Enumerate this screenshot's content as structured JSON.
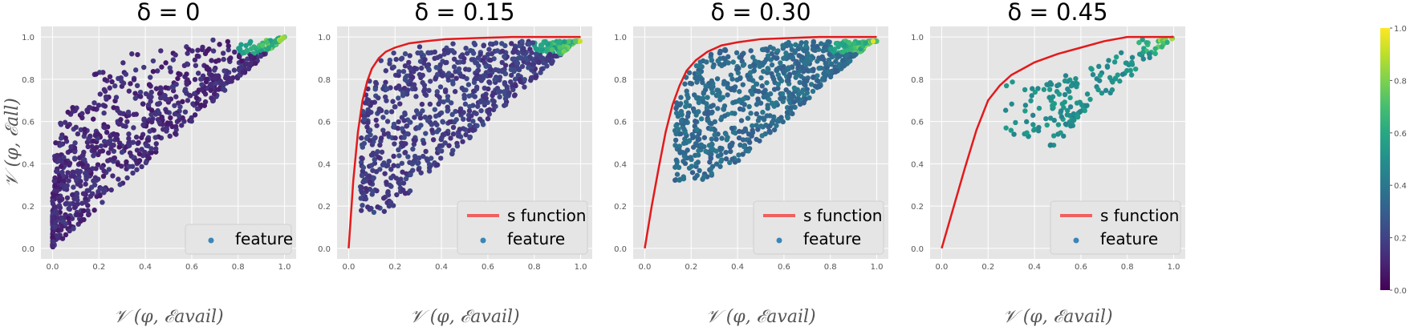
{
  "chart_data": {
    "type": "scatter",
    "colorbar": {
      "colormap": "viridis",
      "ticks": [
        "0.0",
        "0.2",
        "0.4",
        "0.6",
        "0.8",
        "1.0"
      ],
      "range": [
        0.0,
        1.0
      ]
    },
    "background_color": "#e5e5e5",
    "grid_color": "#ffffff",
    "curve_color": "#e31a1c",
    "panels": [
      {
        "title": "δ = 0",
        "delta": 0,
        "xlabel": "𝒱 (φ, ℰavail)",
        "ylabel": "𝒱 (φ, ℰall)",
        "xlim": [
          -0.05,
          1.05
        ],
        "ylim": [
          -0.05,
          1.05
        ],
        "xticks": [
          "0.0",
          "0.2",
          "0.4",
          "0.6",
          "0.8",
          "1.0"
        ],
        "yticks": [
          "0.0",
          "0.2",
          "0.4",
          "0.6",
          "0.8",
          "1.0"
        ],
        "has_curve": false,
        "legend": [
          {
            "label": "feature",
            "marker": "dot"
          }
        ],
        "scatter": {
          "min_x": 0.0,
          "cloud_color_value": 0.12,
          "dense_low_left": true
        },
        "s_curve": null
      },
      {
        "title": "δ = 0.15",
        "delta": 0.15,
        "xlabel": "𝒱 (φ, ℰavail)",
        "ylabel": "",
        "xlim": [
          -0.05,
          1.05
        ],
        "ylim": [
          -0.05,
          1.05
        ],
        "xticks": [
          "0.0",
          "0.2",
          "0.4",
          "0.6",
          "0.8",
          "1.0"
        ],
        "yticks": [
          "0.0",
          "0.2",
          "0.4",
          "0.6",
          "0.8",
          "1.0"
        ],
        "has_curve": true,
        "legend": [
          {
            "label": "s function",
            "marker": "line"
          },
          {
            "label": "feature",
            "marker": "dot"
          }
        ],
        "scatter": {
          "min_x": 0.05,
          "cloud_color_value": 0.18,
          "dense_low_left": false
        },
        "s_curve": {
          "x": [
            0.0,
            0.02,
            0.04,
            0.06,
            0.08,
            0.1,
            0.13,
            0.16,
            0.2,
            0.26,
            0.33,
            0.42,
            0.55,
            0.7,
            0.85,
            1.0
          ],
          "y": [
            0.0,
            0.32,
            0.55,
            0.7,
            0.79,
            0.85,
            0.9,
            0.93,
            0.95,
            0.97,
            0.98,
            0.99,
            0.995,
            1.0,
            1.0,
            1.0
          ]
        }
      },
      {
        "title": "δ = 0.30",
        "delta": 0.3,
        "xlabel": "𝒱 (φ, ℰavail)",
        "ylabel": "",
        "xlim": [
          -0.05,
          1.05
        ],
        "ylim": [
          -0.05,
          1.05
        ],
        "xticks": [
          "0.0",
          "0.2",
          "0.4",
          "0.6",
          "0.8",
          "1.0"
        ],
        "yticks": [
          "0.0",
          "0.2",
          "0.4",
          "0.6",
          "0.8",
          "1.0"
        ],
        "has_curve": true,
        "legend": [
          {
            "label": "s function",
            "marker": "line"
          },
          {
            "label": "feature",
            "marker": "dot"
          }
        ],
        "scatter": {
          "min_x": 0.13,
          "cloud_color_value": 0.35,
          "dense_low_left": false
        },
        "s_curve": {
          "x": [
            0.0,
            0.03,
            0.06,
            0.09,
            0.12,
            0.15,
            0.18,
            0.22,
            0.27,
            0.33,
            0.4,
            0.5,
            0.62,
            0.75,
            0.88,
            1.0
          ],
          "y": [
            0.0,
            0.2,
            0.38,
            0.55,
            0.68,
            0.77,
            0.84,
            0.89,
            0.93,
            0.96,
            0.975,
            0.99,
            0.995,
            1.0,
            1.0,
            1.0
          ]
        }
      },
      {
        "title": "δ = 0.45",
        "delta": 0.45,
        "xlabel": "𝒱 (φ, ℰavail)",
        "ylabel": "",
        "xlim": [
          -0.05,
          1.05
        ],
        "ylim": [
          -0.05,
          1.05
        ],
        "xticks": [
          "0.0",
          "0.2",
          "0.4",
          "0.6",
          "0.8",
          "1.0"
        ],
        "yticks": [
          "0.0",
          "0.2",
          "0.4",
          "0.6",
          "0.8",
          "1.0"
        ],
        "has_curve": true,
        "legend": [
          {
            "label": "s function",
            "marker": "line"
          },
          {
            "label": "feature",
            "marker": "dot"
          }
        ],
        "scatter": {
          "min_x": 0.27,
          "cloud_color_value": 0.5,
          "dense_low_left": false
        },
        "s_curve": {
          "x": [
            0.0,
            0.05,
            0.1,
            0.15,
            0.2,
            0.25,
            0.3,
            0.35,
            0.4,
            0.5,
            0.6,
            0.7,
            0.8,
            0.9,
            1.0
          ],
          "y": [
            0.0,
            0.19,
            0.38,
            0.56,
            0.7,
            0.77,
            0.82,
            0.85,
            0.88,
            0.92,
            0.95,
            0.98,
            1.0,
            1.0,
            1.0
          ]
        }
      }
    ]
  }
}
